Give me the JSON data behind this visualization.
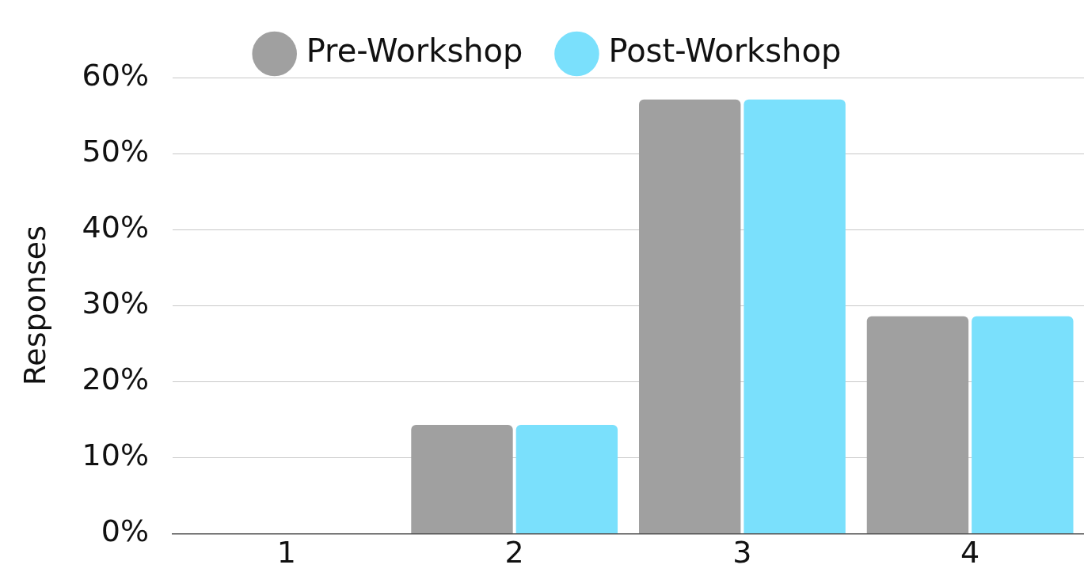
{
  "chart_data": {
    "type": "bar",
    "ylabel": "Responses",
    "categories": [
      "1",
      "2",
      "3",
      "4"
    ],
    "series": [
      {
        "name": "Pre-Workshop",
        "color": "#a0a0a0",
        "values": [
          0,
          14.3,
          57.1,
          28.6
        ]
      },
      {
        "name": "Post-Workshop",
        "color": "#7ae0fc",
        "values": [
          0,
          14.3,
          57.1,
          28.6
        ]
      }
    ],
    "ylim": [
      0,
      60
    ],
    "yticks": [
      {
        "value": 0,
        "label": "0%"
      },
      {
        "value": 10,
        "label": "10%"
      },
      {
        "value": 20,
        "label": "20%"
      },
      {
        "value": 30,
        "label": "30%"
      },
      {
        "value": 40,
        "label": "40%"
      },
      {
        "value": 50,
        "label": "50%"
      },
      {
        "value": 60,
        "label": "60%"
      }
    ],
    "grid": "y",
    "legend": "top"
  }
}
